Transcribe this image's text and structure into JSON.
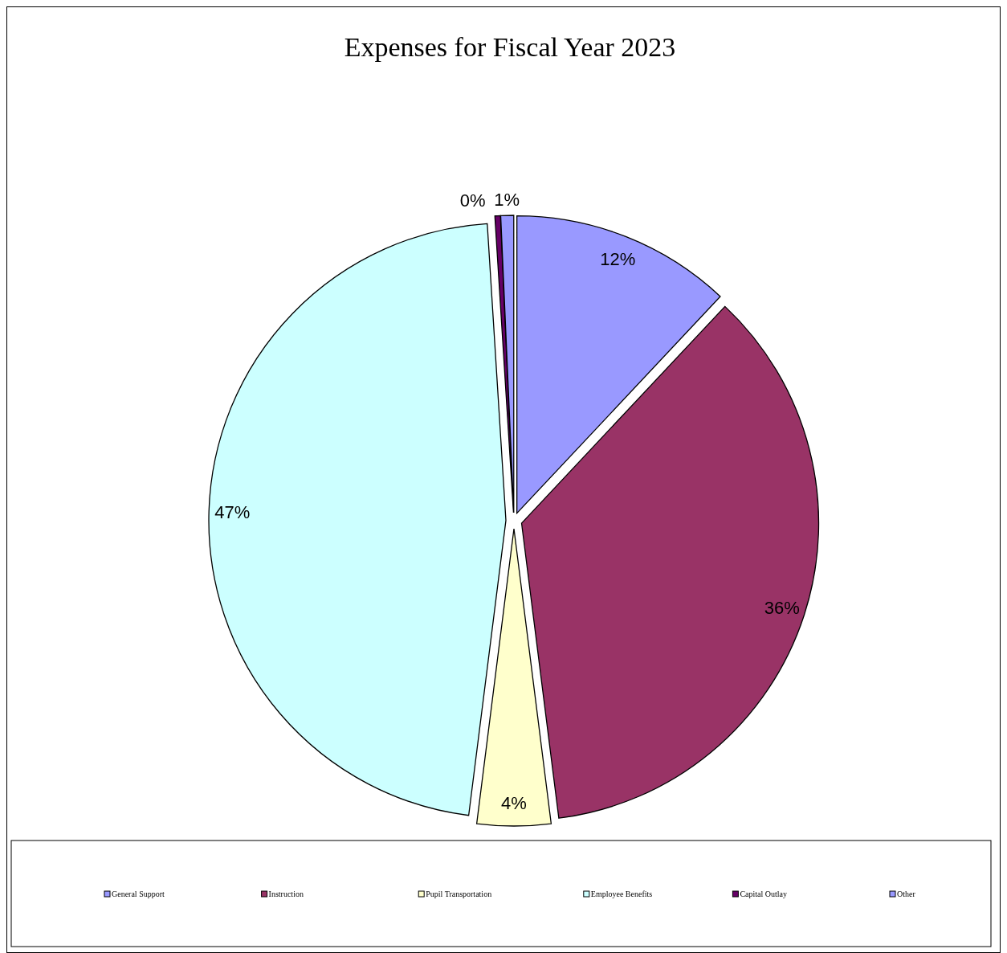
{
  "chart_data": {
    "type": "pie",
    "title": "Expenses for Fiscal Year 2023",
    "categories": [
      "General Support",
      "Instruction",
      "Pupil Transportation",
      "Employee Benefits",
      "Capital Outlay",
      "Other"
    ],
    "values": [
      12,
      36,
      4,
      47,
      0.3,
      0.7
    ],
    "value_labels": [
      "12%",
      "36%",
      "4%",
      "47%",
      "0%",
      "1%"
    ],
    "colors": [
      "#9999ff",
      "#993366",
      "#ffffcc",
      "#ccffff",
      "#660066",
      "#9999ff"
    ],
    "legend": "bottom"
  }
}
